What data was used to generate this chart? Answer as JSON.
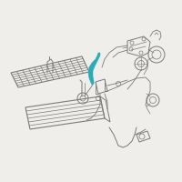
{
  "bg_color": "#f0eeea",
  "highlight_color": "#2aacb8",
  "line_color": "#7a7a7a",
  "line_width": 0.6,
  "fig_width": 2.0,
  "fig_height": 2.0,
  "dpi": 100
}
